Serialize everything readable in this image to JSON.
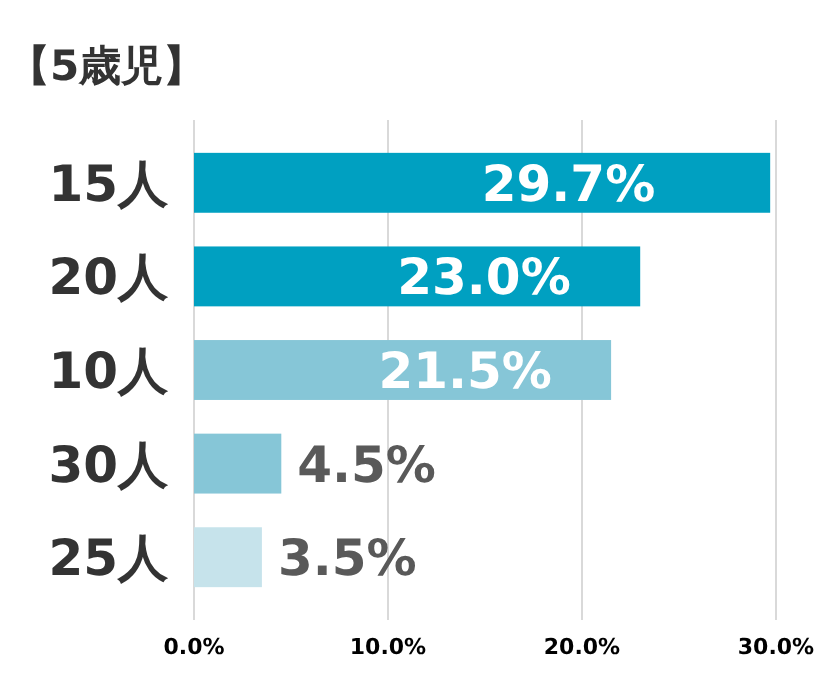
{
  "chart_data": {
    "type": "bar",
    "orientation": "horizontal",
    "title": "【5歳児】",
    "categories": [
      "15人",
      "20人",
      "10人",
      "30人",
      "25人"
    ],
    "values": [
      29.7,
      23.0,
      21.5,
      4.5,
      3.5
    ],
    "colors": [
      "#00a0c1",
      "#00a0c1",
      "#86c6d7",
      "#86c6d7",
      "#c6e3eb"
    ],
    "value_labels": [
      "29.7%",
      "23.0%",
      "21.5%",
      "4.5%",
      "3.5%"
    ],
    "xlim": [
      0,
      30
    ],
    "xticks": [
      {
        "value": 0,
        "label": "0.0%"
      },
      {
        "value": 10,
        "label": "10.0%"
      },
      {
        "value": 20,
        "label": "20.0%"
      },
      {
        "value": 30,
        "label": "30.0%"
      }
    ],
    "grid": "x"
  }
}
